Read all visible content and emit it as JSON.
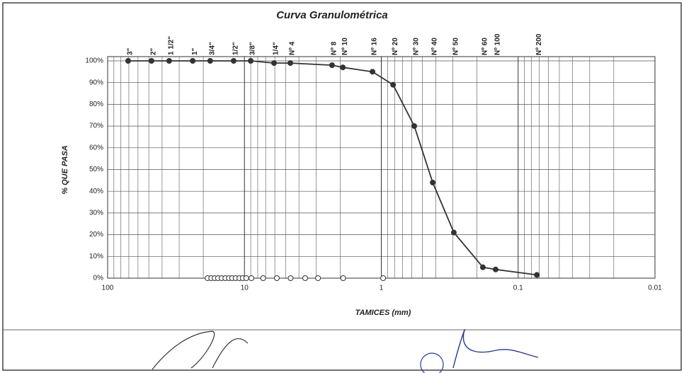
{
  "chart_data": {
    "type": "line",
    "title": "Curva Granulométrica",
    "x_label": "TAMICES (mm)",
    "y_label": "% QUE PASA",
    "log_x": true,
    "grid": true,
    "xlim": [
      100,
      0.01
    ],
    "xticks": [
      100,
      10,
      1,
      0.1,
      0.01
    ],
    "ylim": [
      0,
      100
    ],
    "yticks": [
      {
        "value": 0,
        "label": "0%"
      },
      {
        "value": 10,
        "label": "10%"
      },
      {
        "value": 20,
        "label": "20%"
      },
      {
        "value": 30,
        "label": "30%"
      },
      {
        "value": 40,
        "label": "40%"
      },
      {
        "value": 50,
        "label": "50%"
      },
      {
        "value": 60,
        "label": "60%"
      },
      {
        "value": 70,
        "label": "70%"
      },
      {
        "value": 80,
        "label": "80%"
      },
      {
        "value": 90,
        "label": "90%"
      },
      {
        "value": 100,
        "label": "100%"
      }
    ],
    "sieves": [
      "3\"",
      "2\"",
      "1 1/2\"",
      "1\"",
      "3/4\"",
      "1/2\"",
      "3/8\"",
      "1/4\"",
      "Nº 4",
      "Nº 8",
      "Nº 10",
      "Nº 16",
      "Nº 20",
      "Nº 30",
      "Nº 40",
      "Nº 50",
      "Nº 60",
      "Nº 100",
      "Nº 200"
    ],
    "series": [
      {
        "color": "#333333",
        "marker": "filled",
        "x": [
          70.8,
          47.8,
          35.5,
          23.9,
          17.8,
          12.0,
          9.0,
          6.08,
          4.62,
          2.29,
          1.91,
          1.16,
          0.82,
          0.574,
          0.421,
          0.295,
          0.181,
          0.146,
          0.073
        ],
        "values": [
          100,
          100,
          100,
          100,
          100,
          100,
          100,
          99,
          99,
          98,
          97,
          95,
          89,
          70,
          44,
          21,
          5,
          4,
          1.5
        ]
      },
      {
        "color": "#333333",
        "marker": "hollow",
        "x": [
          18.6,
          17.5,
          16.5,
          15.6,
          14.7,
          13.8,
          13.0,
          12.3,
          11.6,
          10.9,
          10.3,
          9.7,
          8.9,
          7.3,
          5.8,
          4.6,
          3.6,
          2.9,
          1.9,
          0.97
        ],
        "values": [
          0,
          0,
          0,
          0,
          0,
          0,
          0,
          0,
          0,
          0,
          0,
          0,
          0,
          0,
          0,
          0,
          0,
          0,
          0,
          0
        ]
      }
    ]
  }
}
